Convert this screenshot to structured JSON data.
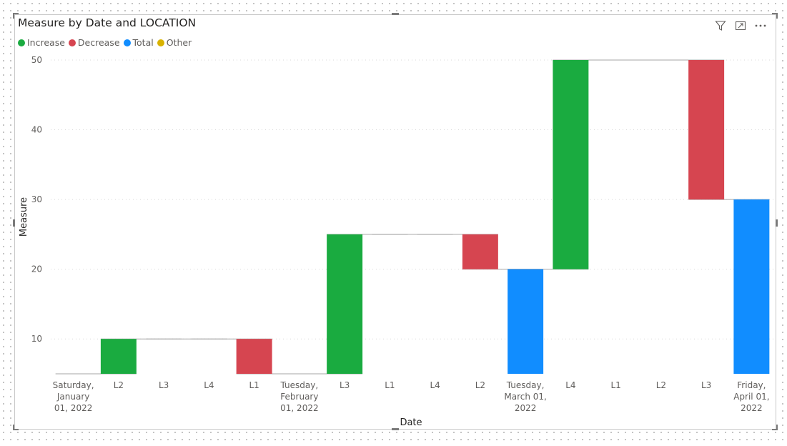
{
  "chart_data": {
    "type": "waterfall",
    "title": "Measure by Date and LOCATION",
    "xlabel": "Date",
    "ylabel": "Measure",
    "ylim": [
      5,
      50
    ],
    "yticks": [
      10,
      20,
      30,
      40,
      50
    ],
    "grid": true,
    "legend_position": "top-left",
    "legend": [
      {
        "name": "Increase",
        "color": "#1AAB40"
      },
      {
        "name": "Decrease",
        "color": "#D64550"
      },
      {
        "name": "Total",
        "color": "#118DFF"
      },
      {
        "name": "Other",
        "color": "#D9B300"
      }
    ],
    "bars": [
      {
        "label": [
          "Saturday,",
          "January",
          "01, 2022"
        ],
        "type": "none",
        "start": 5,
        "end": 5
      },
      {
        "label": [
          "L2"
        ],
        "type": "Increase",
        "start": 5,
        "end": 10
      },
      {
        "label": [
          "L3"
        ],
        "type": "none",
        "start": 10,
        "end": 10
      },
      {
        "label": [
          "L4"
        ],
        "type": "none",
        "start": 10,
        "end": 10
      },
      {
        "label": [
          "L1"
        ],
        "type": "Decrease",
        "start": 10,
        "end": 5
      },
      {
        "label": [
          "Tuesday,",
          "February",
          "01, 2022"
        ],
        "type": "none",
        "start": 5,
        "end": 5
      },
      {
        "label": [
          "L3"
        ],
        "type": "Increase",
        "start": 5,
        "end": 25
      },
      {
        "label": [
          "L1"
        ],
        "type": "none",
        "start": 25,
        "end": 25
      },
      {
        "label": [
          "L4"
        ],
        "type": "none",
        "start": 25,
        "end": 25
      },
      {
        "label": [
          "L2"
        ],
        "type": "Decrease",
        "start": 25,
        "end": 20
      },
      {
        "label": [
          "Tuesday,",
          "March 01,",
          "2022"
        ],
        "type": "Total",
        "start": 5,
        "end": 20
      },
      {
        "label": [
          "L4"
        ],
        "type": "Increase",
        "start": 20,
        "end": 50
      },
      {
        "label": [
          "L1"
        ],
        "type": "none",
        "start": 50,
        "end": 50
      },
      {
        "label": [
          "L2"
        ],
        "type": "none",
        "start": 50,
        "end": 50
      },
      {
        "label": [
          "L3"
        ],
        "type": "Decrease",
        "start": 50,
        "end": 30
      },
      {
        "label": [
          "Friday,",
          "April 01,",
          "2022"
        ],
        "type": "Total",
        "start": 5,
        "end": 30
      }
    ]
  },
  "icons": {
    "filter": "filter-icon",
    "focus": "focus-mode-icon",
    "more": "more-options-icon"
  }
}
